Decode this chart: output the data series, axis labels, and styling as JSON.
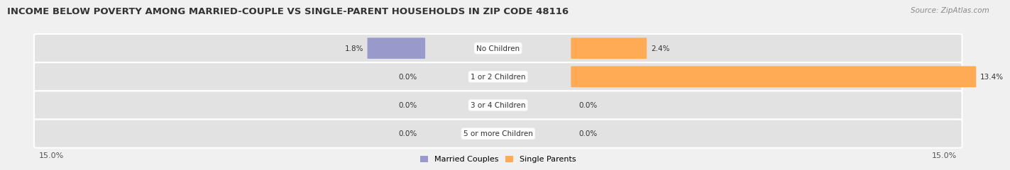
{
  "title": "INCOME BELOW POVERTY AMONG MARRIED-COUPLE VS SINGLE-PARENT HOUSEHOLDS IN ZIP CODE 48116",
  "source": "Source: ZipAtlas.com",
  "categories": [
    "No Children",
    "1 or 2 Children",
    "3 or 4 Children",
    "5 or more Children"
  ],
  "married_values": [
    1.8,
    0.0,
    0.0,
    0.0
  ],
  "single_values": [
    2.4,
    13.4,
    0.0,
    0.0
  ],
  "married_color": "#9999cc",
  "single_color": "#ffaa55",
  "axis_max": 15.0,
  "axis_label_left": "15.0%",
  "axis_label_right": "15.0%",
  "legend_married": "Married Couples",
  "legend_single": "Single Parents",
  "bg_color": "#f0f0f0",
  "row_bg_color": "#e2e2e2",
  "title_color": "#333333",
  "source_color": "#888888",
  "label_color": "#333333",
  "title_fontsize": 9.5,
  "source_fontsize": 7.5,
  "bar_label_fontsize": 7.5,
  "category_fontsize": 7.5,
  "legend_fontsize": 8
}
